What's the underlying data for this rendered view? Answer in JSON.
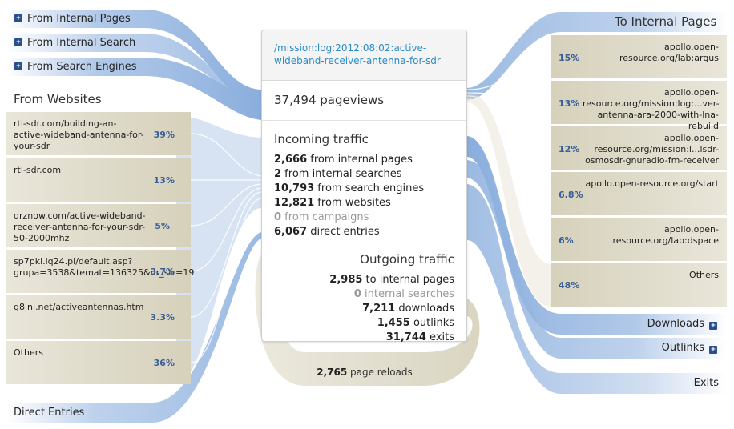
{
  "left": {
    "internal_pages": "From Internal Pages",
    "internal_search": "From Internal Search",
    "search_engines": "From Search Engines",
    "websites_heading": "From Websites",
    "websites": [
      {
        "label": "rtl-sdr.com/building-an-active-wideband-antenna-for-your-sdr",
        "pct": "39%"
      },
      {
        "label": "rtl-sdr.com",
        "pct": "13%"
      },
      {
        "label": "qrznow.com/active-wideband-receiver-antenna-for-your-sdr-50-2000mhz",
        "pct": "5%"
      },
      {
        "label": "sp7pki.iq24.pl/default.asp?grupa=3538&temat=136325&nr_str=19",
        "pct": "3.7%"
      },
      {
        "label": "g8jnj.net/activeantennas.htm",
        "pct": "3.3%"
      },
      {
        "label": "Others",
        "pct": "36%"
      }
    ],
    "direct_entries": "Direct Entries"
  },
  "center": {
    "title": "/mission:log:2012:08:02:active-wideband-receiver-antenna-for-sdr",
    "pageviews": "37,494 pageviews",
    "incoming_heading": "Incoming traffic",
    "incoming": [
      {
        "num": "2,666",
        "text": " from internal pages",
        "muted": false
      },
      {
        "num": "2",
        "text": " from internal searches",
        "muted": false
      },
      {
        "num": "10,793",
        "text": " from search engines",
        "muted": false
      },
      {
        "num": "12,821",
        "text": " from websites",
        "muted": false
      },
      {
        "num": "0",
        "text": " from campaigns",
        "muted": true
      },
      {
        "num": "6,067",
        "text": " direct entries",
        "muted": false
      }
    ],
    "outgoing_heading": "Outgoing traffic",
    "outgoing": [
      {
        "num": "2,985",
        "text": " to internal pages",
        "muted": false
      },
      {
        "num": "0",
        "text": " internal searches",
        "muted": true
      },
      {
        "num": "7,211",
        "text": " downloads",
        "muted": false
      },
      {
        "num": "1,455",
        "text": " outlinks",
        "muted": false
      },
      {
        "num": "31,744",
        "text": " exits",
        "muted": false
      }
    ],
    "reloads_num": "2,765",
    "reloads_text": " page reloads"
  },
  "right": {
    "heading": "To Internal Pages",
    "pages": [
      {
        "label": "apollo.open-resource.org/lab:argus",
        "pct": "15%"
      },
      {
        "label": "apollo.open-resource.org/mission:log:...ver-antenna-ara-2000-with-lna-rebuild",
        "pct": "13%"
      },
      {
        "label": "apollo.open-resource.org/mission:l...lsdr-osmosdr-gnuradio-fm-receiver",
        "pct": "12%"
      },
      {
        "label": "apollo.open-resource.org/start",
        "pct": "6.8%"
      },
      {
        "label": "apollo.open-resource.org/lab:dspace",
        "pct": "6%"
      },
      {
        "label": "Others",
        "pct": "48%"
      }
    ],
    "downloads": "Downloads",
    "outlinks": "Outlinks",
    "exits": "Exits"
  },
  "colors": {
    "blue_flow": "#8fb1de",
    "beige_flow": "#dcd8c4",
    "row_beige": "#e8e4d6",
    "link_blue": "#2d8cc4",
    "percent_blue": "#3a5e96"
  }
}
